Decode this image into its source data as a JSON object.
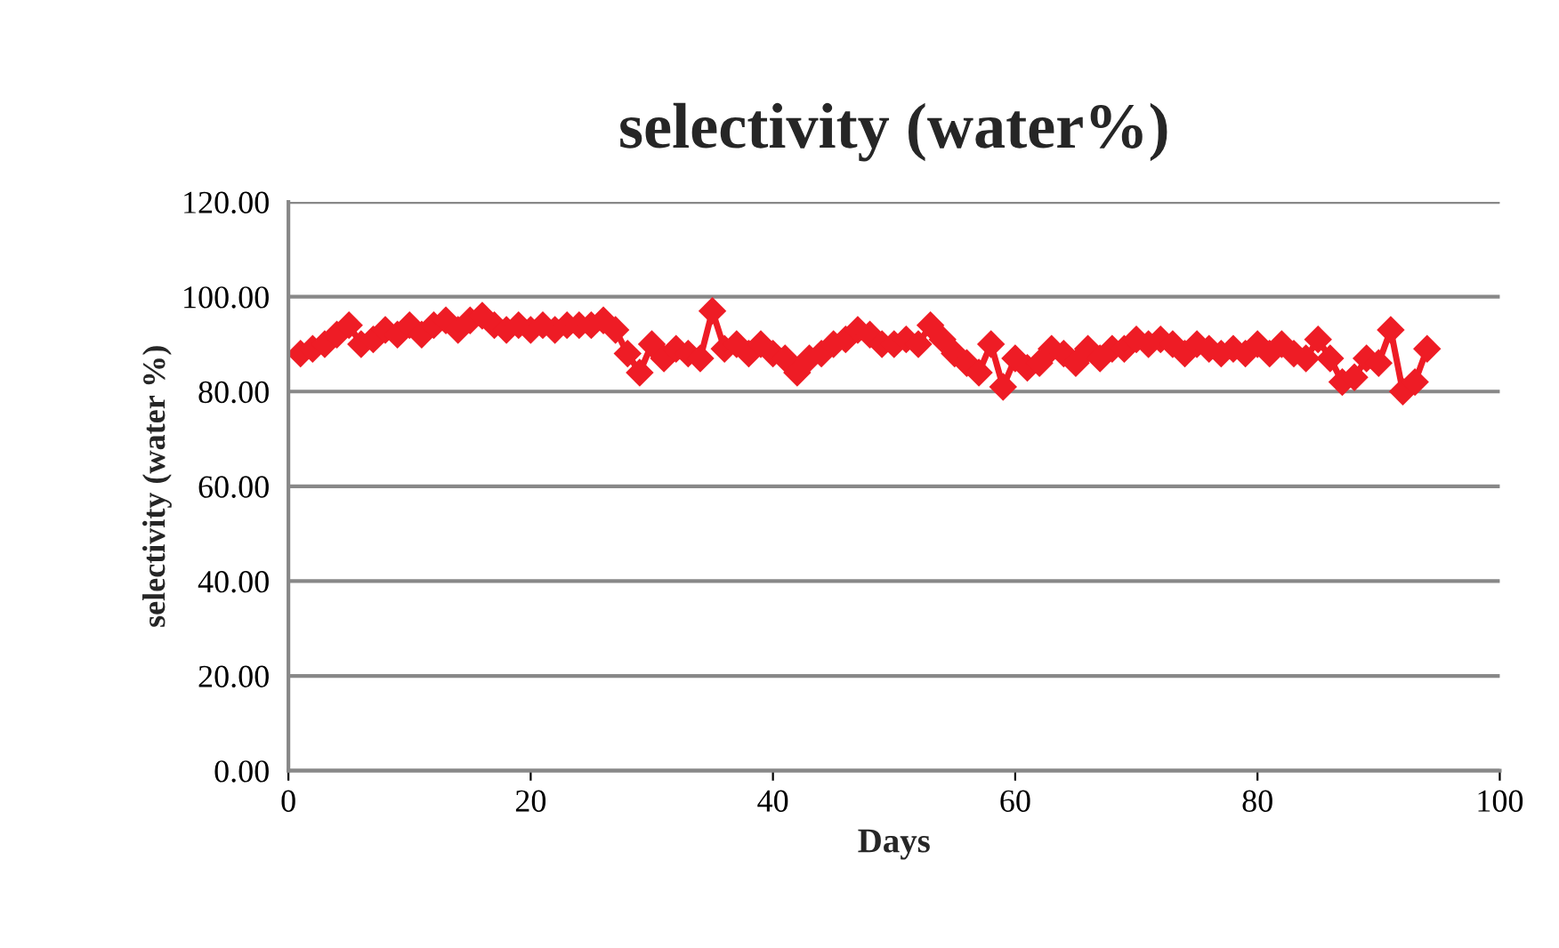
{
  "chart_data": {
    "type": "line",
    "title": "selectivity (water%)",
    "xlabel": "Days",
    "ylabel": "selectivity (water %)",
    "x": [
      1,
      2,
      3,
      4,
      5,
      6,
      7,
      8,
      9,
      10,
      11,
      12,
      13,
      14,
      15,
      16,
      17,
      18,
      19,
      20,
      21,
      22,
      23,
      24,
      25,
      26,
      27,
      28,
      29,
      30,
      31,
      32,
      33,
      34,
      35,
      36,
      37,
      38,
      39,
      40,
      41,
      42,
      43,
      44,
      45,
      46,
      47,
      48,
      49,
      50,
      51,
      52,
      53,
      54,
      55,
      56,
      57,
      58,
      59,
      60,
      61,
      62,
      63,
      64,
      65,
      66,
      67,
      68,
      69,
      70,
      71,
      72,
      73,
      74,
      75,
      76,
      77,
      78,
      79,
      80,
      81,
      82,
      83,
      84,
      85,
      86,
      87,
      88,
      89,
      90,
      91,
      92,
      93,
      94
    ],
    "series": [
      {
        "color": "#ee1c25",
        "values": [
          88,
          89,
          90,
          92,
          94,
          90,
          91,
          93,
          92,
          94,
          92,
          94,
          95,
          93,
          95,
          96,
          94,
          93,
          94,
          93,
          94,
          93,
          94,
          94,
          94,
          95,
          93,
          88,
          84,
          90,
          87,
          89,
          88,
          87,
          97,
          89,
          90,
          88,
          90,
          88,
          87,
          84,
          87,
          88,
          90,
          91,
          93,
          92,
          90,
          90,
          91,
          90,
          94,
          91,
          88,
          86,
          84,
          90,
          81,
          87,
          85,
          86,
          89,
          88,
          86,
          89,
          87,
          89,
          89,
          91,
          90,
          91,
          90,
          88,
          90,
          89,
          88,
          89,
          88,
          90,
          88,
          90,
          88,
          87,
          91,
          87,
          82,
          83,
          87,
          86,
          93,
          80,
          82,
          89
        ]
      }
    ],
    "xlim": [
      0,
      100
    ],
    "xticks": [
      0,
      20,
      40,
      60,
      80,
      100
    ],
    "ylim": [
      0,
      120
    ],
    "yticks": [
      {
        "value": 0,
        "label": "0.00"
      },
      {
        "value": 20,
        "label": "20.00"
      },
      {
        "value": 40,
        "label": "40.00"
      },
      {
        "value": 60,
        "label": "60.00"
      },
      {
        "value": 80,
        "label": "80.00"
      },
      {
        "value": 100,
        "label": "100.00"
      },
      {
        "value": 120,
        "label": "120.00"
      }
    ],
    "grid": "y",
    "marker": "diamond",
    "line_style": "solid",
    "legend": false
  }
}
